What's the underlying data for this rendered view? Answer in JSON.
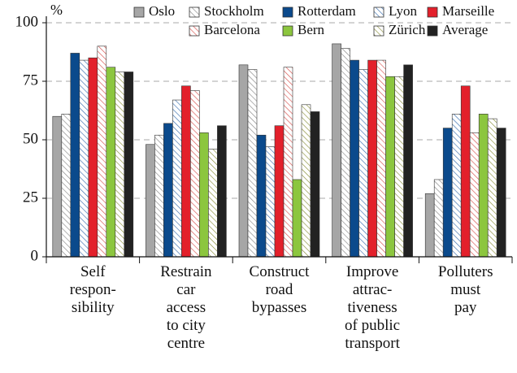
{
  "chart_data": {
    "type": "bar",
    "y_label": "%",
    "categories": [
      "Self\nrespon-\nsibility",
      "Restrain\ncar\naccess\nto city\ncentre",
      "Construct\nroad\nbypasses",
      "Improve\nattrac-\ntiveness\nof public\ntransport",
      "Polluters\nmust\npay"
    ],
    "series": [
      {
        "name": "Oslo",
        "color": "#a6a6a6",
        "hatched": false,
        "values": [
          60,
          48,
          82,
          91,
          27
        ]
      },
      {
        "name": "Stockholm",
        "color": "#888888",
        "hatched": true,
        "values": [
          61,
          52,
          80,
          89,
          33
        ]
      },
      {
        "name": "Rotterdam",
        "color": "#0b4a8c",
        "hatched": false,
        "values": [
          87,
          57,
          52,
          84,
          55
        ]
      },
      {
        "name": "Lyon",
        "color": "#3a6fb0",
        "hatched": true,
        "values": [
          84,
          67,
          47,
          80,
          61
        ]
      },
      {
        "name": "Marseille",
        "color": "#e3202b",
        "hatched": false,
        "values": [
          85,
          73,
          56,
          84,
          73
        ]
      },
      {
        "name": "Barcelona",
        "color": "#d9534f",
        "hatched": true,
        "values": [
          90,
          71,
          81,
          84,
          53
        ]
      },
      {
        "name": "Bern",
        "color": "#8cc63e",
        "hatched": false,
        "values": [
          81,
          53,
          33,
          77,
          61
        ]
      },
      {
        "name": "Zürich",
        "color": "#8a8f3a",
        "hatched": true,
        "values": [
          79,
          46,
          65,
          77,
          59
        ]
      },
      {
        "name": "Average",
        "color": "#222222",
        "hatched": false,
        "values": [
          79,
          56,
          62,
          82,
          55
        ]
      }
    ],
    "ylim": [
      0,
      100
    ],
    "yticks": [
      0,
      25,
      50,
      75,
      100
    ],
    "grid": true
  }
}
